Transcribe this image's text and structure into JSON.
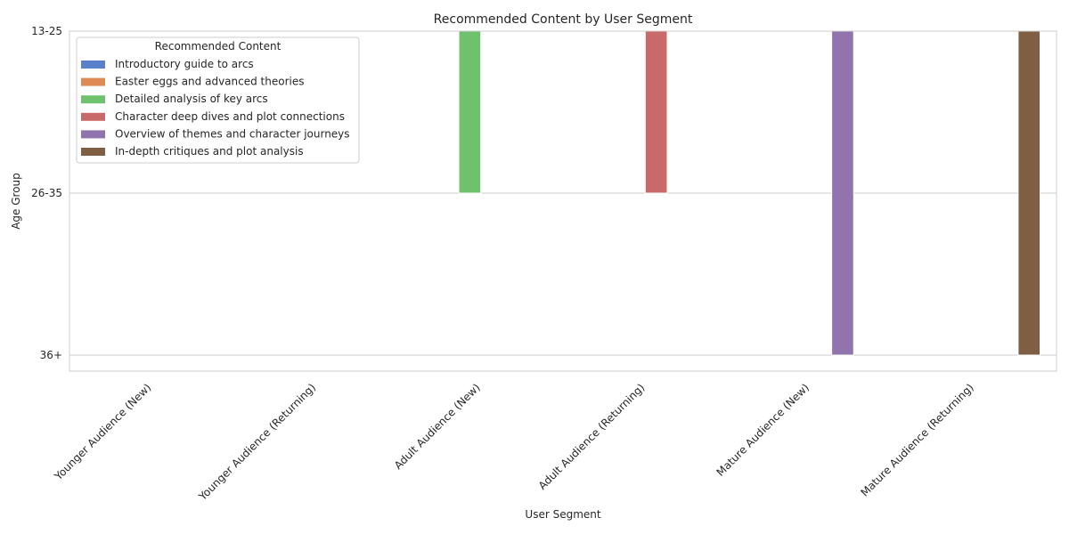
{
  "chart_data": {
    "type": "bar",
    "title": "Recommended Content by User Segment",
    "xlabel": "User Segment",
    "ylabel": "Age Group",
    "categories": [
      "Younger Audience (New)",
      "Younger Audience (Returning)",
      "Adult Audience (New)",
      "Adult Audience (Returning)",
      "Mature Audience (New)",
      "Mature Audience (Returning)"
    ],
    "y_categories": [
      "13-25",
      "26-35",
      "36+"
    ],
    "legend": {
      "title": "Recommended Content",
      "position": "top-left"
    },
    "grid": "y",
    "series": [
      {
        "name": "Introductory guide to arcs",
        "color": "#5a7fcb",
        "values": [
          "13-25",
          null,
          null,
          null,
          null,
          null
        ]
      },
      {
        "name": "Easter eggs and advanced theories",
        "color": "#de8a55",
        "values": [
          null,
          "13-25",
          null,
          null,
          null,
          null
        ]
      },
      {
        "name": "Detailed analysis of key arcs",
        "color": "#6fc26d",
        "values": [
          null,
          null,
          "26-35",
          null,
          null,
          null
        ]
      },
      {
        "name": "Character deep dives and plot connections",
        "color": "#c96a6a",
        "values": [
          null,
          null,
          null,
          "26-35",
          null,
          null
        ]
      },
      {
        "name": "Overview of themes and character journeys",
        "color": "#9174ae",
        "values": [
          null,
          null,
          null,
          null,
          "36+",
          null
        ]
      },
      {
        "name": "In-depth critiques and plot analysis",
        "color": "#7f5e44",
        "values": [
          null,
          null,
          null,
          null,
          null,
          "36+"
        ]
      }
    ]
  }
}
